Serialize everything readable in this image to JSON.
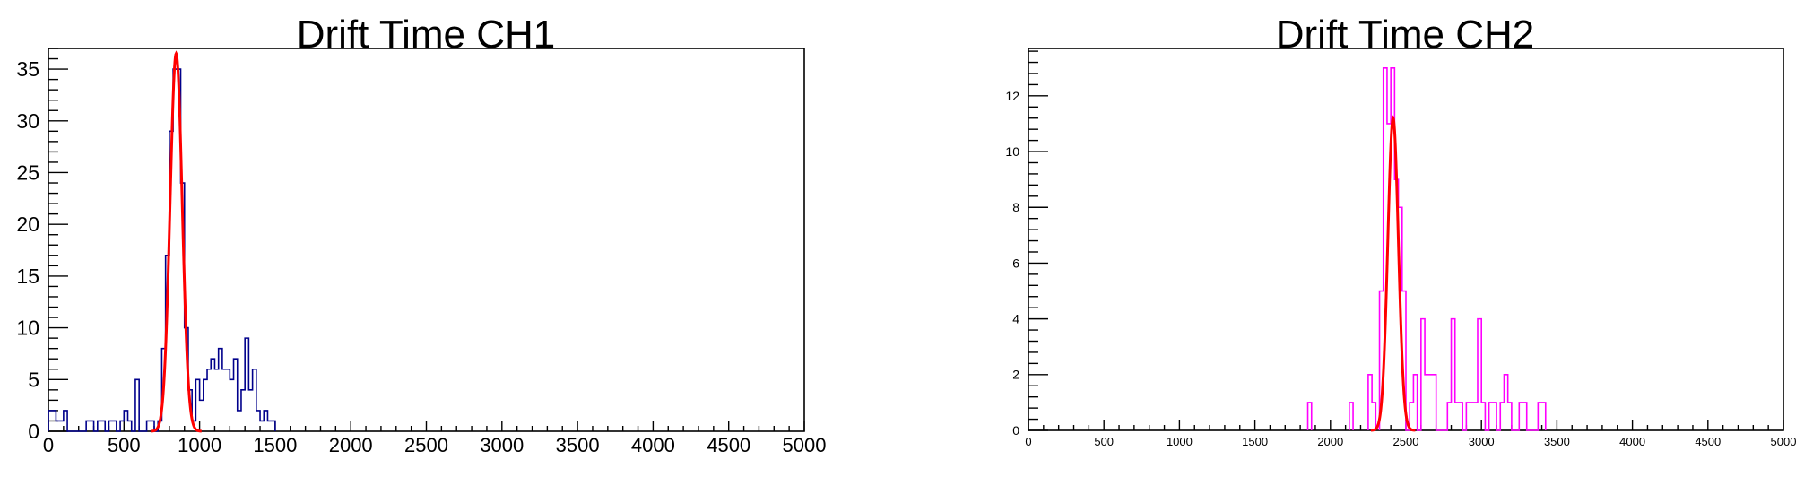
{
  "chart_data": [
    {
      "type": "histogram",
      "title": "Drift Time CH1",
      "xlim": [
        0,
        5000
      ],
      "ylim": [
        0,
        37
      ],
      "xticks": [
        0,
        500,
        1000,
        1500,
        2000,
        2500,
        3000,
        3500,
        4000,
        4500,
        5000
      ],
      "yticks": [
        0,
        5,
        10,
        15,
        20,
        25,
        30,
        35
      ],
      "bin_width": 25,
      "histogram_color": "#00008b",
      "fit_color": "#ff0000",
      "bins": [
        {
          "x": 0,
          "y": 2
        },
        {
          "x": 25,
          "y": 2
        },
        {
          "x": 50,
          "y": 1
        },
        {
          "x": 75,
          "y": 1
        },
        {
          "x": 100,
          "y": 2
        },
        {
          "x": 125,
          "y": 0
        },
        {
          "x": 150,
          "y": 0
        },
        {
          "x": 175,
          "y": 0
        },
        {
          "x": 200,
          "y": 0
        },
        {
          "x": 225,
          "y": 0
        },
        {
          "x": 250,
          "y": 1
        },
        {
          "x": 275,
          "y": 1
        },
        {
          "x": 300,
          "y": 0
        },
        {
          "x": 325,
          "y": 1
        },
        {
          "x": 350,
          "y": 1
        },
        {
          "x": 375,
          "y": 0
        },
        {
          "x": 400,
          "y": 1
        },
        {
          "x": 425,
          "y": 1
        },
        {
          "x": 450,
          "y": 0
        },
        {
          "x": 475,
          "y": 1
        },
        {
          "x": 500,
          "y": 2
        },
        {
          "x": 525,
          "y": 1
        },
        {
          "x": 550,
          "y": 0
        },
        {
          "x": 575,
          "y": 5
        },
        {
          "x": 600,
          "y": 0
        },
        {
          "x": 625,
          "y": 0
        },
        {
          "x": 650,
          "y": 1
        },
        {
          "x": 675,
          "y": 1
        },
        {
          "x": 700,
          "y": 0
        },
        {
          "x": 725,
          "y": 1
        },
        {
          "x": 750,
          "y": 8
        },
        {
          "x": 775,
          "y": 17
        },
        {
          "x": 800,
          "y": 29
        },
        {
          "x": 825,
          "y": 35
        },
        {
          "x": 850,
          "y": 35
        },
        {
          "x": 875,
          "y": 24
        },
        {
          "x": 900,
          "y": 10
        },
        {
          "x": 925,
          "y": 4
        },
        {
          "x": 950,
          "y": 1
        },
        {
          "x": 975,
          "y": 5
        },
        {
          "x": 1000,
          "y": 3
        },
        {
          "x": 1025,
          "y": 5
        },
        {
          "x": 1050,
          "y": 6
        },
        {
          "x": 1075,
          "y": 7
        },
        {
          "x": 1100,
          "y": 6
        },
        {
          "x": 1125,
          "y": 8
        },
        {
          "x": 1150,
          "y": 6
        },
        {
          "x": 1175,
          "y": 6
        },
        {
          "x": 1200,
          "y": 5
        },
        {
          "x": 1225,
          "y": 7
        },
        {
          "x": 1250,
          "y": 2
        },
        {
          "x": 1275,
          "y": 4
        },
        {
          "x": 1300,
          "y": 9
        },
        {
          "x": 1325,
          "y": 4
        },
        {
          "x": 1350,
          "y": 6
        },
        {
          "x": 1375,
          "y": 2
        },
        {
          "x": 1400,
          "y": 1
        },
        {
          "x": 1425,
          "y": 2
        },
        {
          "x": 1450,
          "y": 1
        },
        {
          "x": 1475,
          "y": 1
        }
      ],
      "fit": {
        "type": "gaussian",
        "amplitude": 36.5,
        "mean": 845,
        "sigma": 40
      }
    },
    {
      "type": "histogram",
      "title": "Drift Time CH2",
      "xlim": [
        0,
        5000
      ],
      "ylim": [
        0,
        13.7
      ],
      "xticks": [
        0,
        500,
        1000,
        1500,
        2000,
        2500,
        3000,
        3500,
        4000,
        4500,
        5000
      ],
      "yticks": [
        0,
        2,
        4,
        6,
        8,
        10,
        12
      ],
      "bin_width": 25,
      "histogram_color": "#ff00ff",
      "fit_color": "#ff0000",
      "bins": [
        {
          "x": 1850,
          "y": 1
        },
        {
          "x": 2125,
          "y": 1
        },
        {
          "x": 2250,
          "y": 2
        },
        {
          "x": 2275,
          "y": 1
        },
        {
          "x": 2325,
          "y": 5
        },
        {
          "x": 2350,
          "y": 13
        },
        {
          "x": 2375,
          "y": 11
        },
        {
          "x": 2400,
          "y": 13
        },
        {
          "x": 2425,
          "y": 9
        },
        {
          "x": 2450,
          "y": 8
        },
        {
          "x": 2475,
          "y": 5
        },
        {
          "x": 2500,
          "y": 0
        },
        {
          "x": 2525,
          "y": 1
        },
        {
          "x": 2550,
          "y": 2
        },
        {
          "x": 2575,
          "y": 0
        },
        {
          "x": 2600,
          "y": 4
        },
        {
          "x": 2625,
          "y": 2
        },
        {
          "x": 2650,
          "y": 2
        },
        {
          "x": 2675,
          "y": 2
        },
        {
          "x": 2700,
          "y": 0
        },
        {
          "x": 2725,
          "y": 0
        },
        {
          "x": 2750,
          "y": 0
        },
        {
          "x": 2775,
          "y": 1
        },
        {
          "x": 2800,
          "y": 4
        },
        {
          "x": 2825,
          "y": 1
        },
        {
          "x": 2850,
          "y": 1
        },
        {
          "x": 2875,
          "y": 0
        },
        {
          "x": 2900,
          "y": 1
        },
        {
          "x": 2925,
          "y": 1
        },
        {
          "x": 2950,
          "y": 1
        },
        {
          "x": 2975,
          "y": 4
        },
        {
          "x": 3000,
          "y": 1
        },
        {
          "x": 3025,
          "y": 0
        },
        {
          "x": 3050,
          "y": 1
        },
        {
          "x": 3075,
          "y": 1
        },
        {
          "x": 3100,
          "y": 0
        },
        {
          "x": 3125,
          "y": 1
        },
        {
          "x": 3150,
          "y": 2
        },
        {
          "x": 3175,
          "y": 1
        },
        {
          "x": 3200,
          "y": 0
        },
        {
          "x": 3225,
          "y": 0
        },
        {
          "x": 3250,
          "y": 1
        },
        {
          "x": 3275,
          "y": 1
        },
        {
          "x": 3300,
          "y": 0
        },
        {
          "x": 3325,
          "y": 0
        },
        {
          "x": 3350,
          "y": 0
        },
        {
          "x": 3375,
          "y": 1
        },
        {
          "x": 3400,
          "y": 1
        }
      ],
      "fit": {
        "type": "gaussian",
        "amplitude": 11.2,
        "mean": 2415,
        "sigma": 35
      }
    }
  ]
}
